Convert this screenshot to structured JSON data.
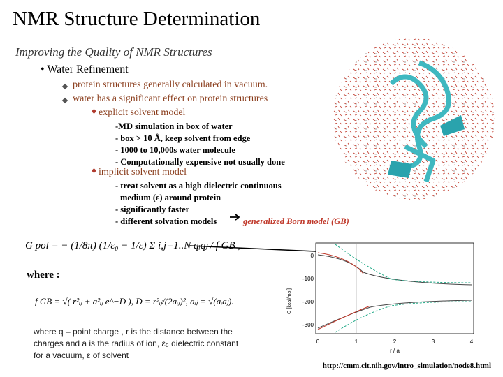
{
  "title": "NMR Structure Determination",
  "subtitle": "Improving the Quality of NMR Structures",
  "bullet": "Water Refinement",
  "sub_bullets": [
    "protein structures generally calculated in vacuum.",
    "water has a significant effect on protein structures"
  ],
  "explicit": {
    "heading": "explicit solvent model",
    "lines": [
      "-MD simulation in box of water",
      "-  box > 10 Å, keep solvent from edge",
      "- 1000 to 10,000s water molecule",
      "- Computationally expensive not usually done"
    ]
  },
  "implicit": {
    "heading": "implicit solvent model",
    "lines": [
      "- treat solvent as a high dielectric continuous",
      "medium (ε) around protein",
      "-  significantly faster"
    ],
    "last_line": "- different solvation models",
    "highlight": "generalized Born model (GB)"
  },
  "equation_1": "G pol = − (1/8π) (1/ε₀ − 1/ε) Σ i,j=1..N  qᵢqⱼ / f GB ,",
  "where": "where :",
  "equation_2": "f GB = √( r²ᵢⱼ + a²ᵢⱼ e^−D ),   D = r²ᵢⱼ/(2aᵢⱼ)²,   aᵢⱼ = √(aᵢaⱼ).",
  "note": [
    "where  q – point charge , r is the distance between the",
    "charges and a is the radius of ion, ε₀ dielectric constant",
    "for a vacuum, ε of solvent"
  ],
  "plot": {
    "y_label": "G [kcal/mol]",
    "x_label": "r / a",
    "yticks": [
      "0",
      "-100",
      "-200",
      "-300"
    ],
    "xticks": [
      "0",
      "1",
      "2",
      "3",
      "4"
    ]
  },
  "source": "http://cmm.cit.nih.gov/intro_simulation/node8.html"
}
